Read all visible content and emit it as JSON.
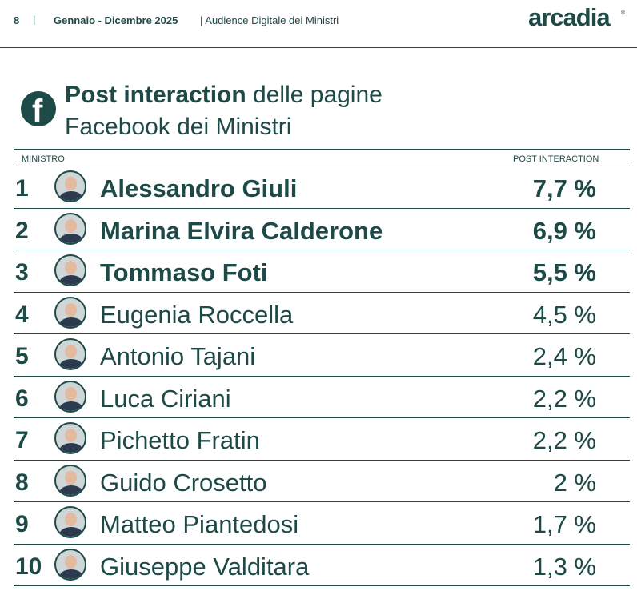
{
  "header": {
    "page_number": "8",
    "separator": "|",
    "period": "Gennaio - Dicembre 2025",
    "subtitle": "| Audience Digitale dei Ministri",
    "logo": "arcadia",
    "logo_mark": "®"
  },
  "title": {
    "icon": "facebook-icon",
    "bold": "Post interaction",
    "line1_rest": " delle pagine",
    "line2": "Facebook dei Ministri"
  },
  "table": {
    "col_left": "MINISTRO",
    "col_right": "POST INTERACTION",
    "rows": [
      {
        "rank": "1",
        "name": "Alessandro Giuli",
        "value": "7,7 %"
      },
      {
        "rank": "2",
        "name": "Marina Elvira Calderone",
        "value": "6,9 %"
      },
      {
        "rank": "3",
        "name": "Tommaso Foti",
        "value": "5,5 %"
      },
      {
        "rank": "4",
        "name": "Eugenia Roccella",
        "value": "4,5 %"
      },
      {
        "rank": "5",
        "name": "Antonio Tajani",
        "value": "2,4 %"
      },
      {
        "rank": "6",
        "name": "Luca Ciriani",
        "value": "2,2 %"
      },
      {
        "rank": "7",
        "name": "Pichetto Fratin",
        "value": "2,2 %"
      },
      {
        "rank": "8",
        "name": "Guido Crosetto",
        "value": "2 %"
      },
      {
        "rank": "9",
        "name": "Matteo Piantedosi",
        "value": "1,7 %"
      },
      {
        "rank": "10",
        "name": "Giuseppe Valditara",
        "value": "1,3 %"
      }
    ]
  },
  "colors": {
    "brand": "#1d4a47"
  }
}
